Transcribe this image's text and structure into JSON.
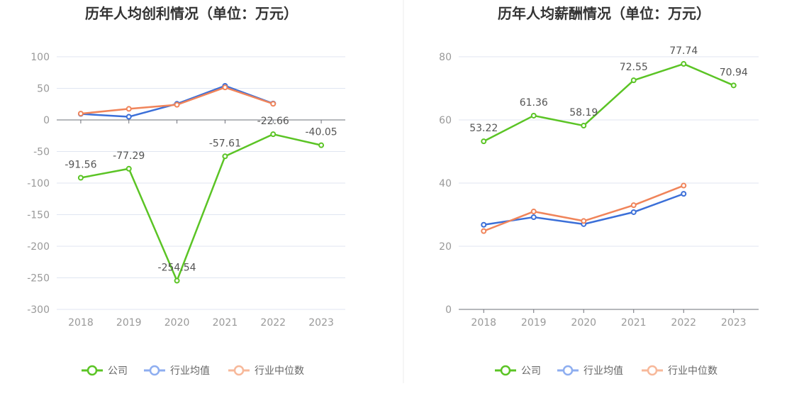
{
  "chart_data": [
    {
      "type": "line",
      "title": "历年人均创利情况（单位：万元）",
      "categories": [
        "2018",
        "2019",
        "2020",
        "2021",
        "2022",
        "2023"
      ],
      "ylim": [
        -300,
        100
      ],
      "yticks": [
        "100",
        "50",
        "0",
        "-50",
        "-100",
        "-150",
        "-200",
        "-250",
        "-300"
      ],
      "grid": true,
      "legend_position": "bottom",
      "series": [
        {
          "name": "公司",
          "color": "#5bc425",
          "values": [
            -91.56,
            -77.29,
            -254.54,
            -57.61,
            -22.66,
            -40.05
          ],
          "labels": [
            "-91.56",
            "-77.29",
            "-254.54",
            "-57.61",
            "-22.66",
            "-40.05"
          ]
        },
        {
          "name": "行业均值",
          "color": "#3b6fd8",
          "values": [
            9.5,
            5,
            25.5,
            54,
            26,
            null
          ]
        },
        {
          "name": "行业中位数",
          "color": "#f0845a",
          "values": [
            10,
            17.5,
            24,
            51.5,
            25.5,
            null
          ]
        }
      ]
    },
    {
      "type": "line",
      "title": "历年人均薪酬情况（单位：万元）",
      "categories": [
        "2018",
        "2019",
        "2020",
        "2021",
        "2022",
        "2023"
      ],
      "ylim": [
        0,
        80
      ],
      "yticks": [
        "80",
        "60",
        "40",
        "20",
        "0"
      ],
      "grid": true,
      "legend_position": "bottom",
      "series": [
        {
          "name": "公司",
          "color": "#5bc425",
          "values": [
            53.22,
            61.36,
            58.19,
            72.55,
            77.74,
            70.94
          ],
          "labels": [
            "53.22",
            "61.36",
            "58.19",
            "72.55",
            "77.74",
            "70.94"
          ]
        },
        {
          "name": "行业均值",
          "color": "#3b6fd8",
          "values": [
            26.8,
            29.2,
            27,
            30.8,
            36.6,
            null
          ]
        },
        {
          "name": "行业中位数",
          "color": "#f0845a",
          "values": [
            24.8,
            31,
            28,
            33,
            39.2,
            null
          ]
        }
      ]
    }
  ]
}
